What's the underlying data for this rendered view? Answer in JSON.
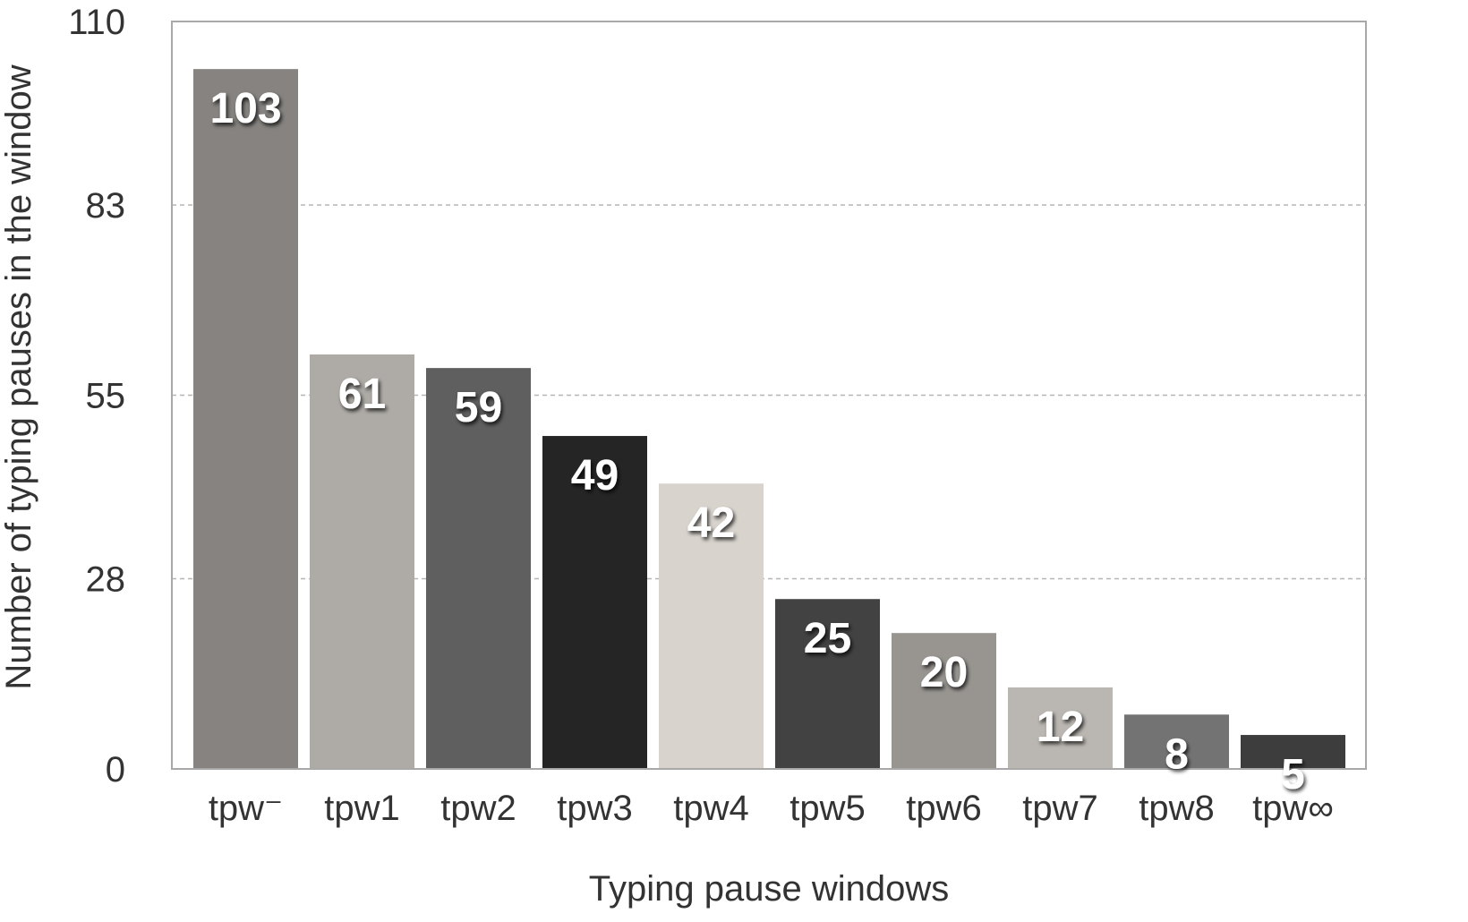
{
  "chart_data": {
    "type": "bar",
    "title": "",
    "xlabel": "Typing pause windows",
    "ylabel": "Number of typing pauses in the window",
    "categories": [
      "tpw⁻",
      "tpw1",
      "tpw2",
      "tpw3",
      "tpw4",
      "tpw5",
      "tpw6",
      "tpw7",
      "tpw8",
      "tpw∞"
    ],
    "values": [
      103,
      61,
      59,
      49,
      42,
      25,
      20,
      12,
      8,
      5
    ],
    "data_labels": [
      "103",
      "61",
      "59",
      "49",
      "42",
      "25",
      "20",
      "12",
      "8",
      "5"
    ],
    "bar_colors": [
      "#868380",
      "#aeaba6",
      "#5f5f5f",
      "#252525",
      "#d8d3cd",
      "#424242",
      "#989591",
      "#bab6b1",
      "#737373",
      "#3d3d3d"
    ],
    "ylim": [
      0,
      110
    ],
    "yticks": [
      0,
      28,
      55,
      83,
      110
    ],
    "ytick_labels": [
      "0",
      "28",
      "55",
      "83",
      "110"
    ],
    "grid": "horizontal dashed",
    "legend": "none"
  }
}
